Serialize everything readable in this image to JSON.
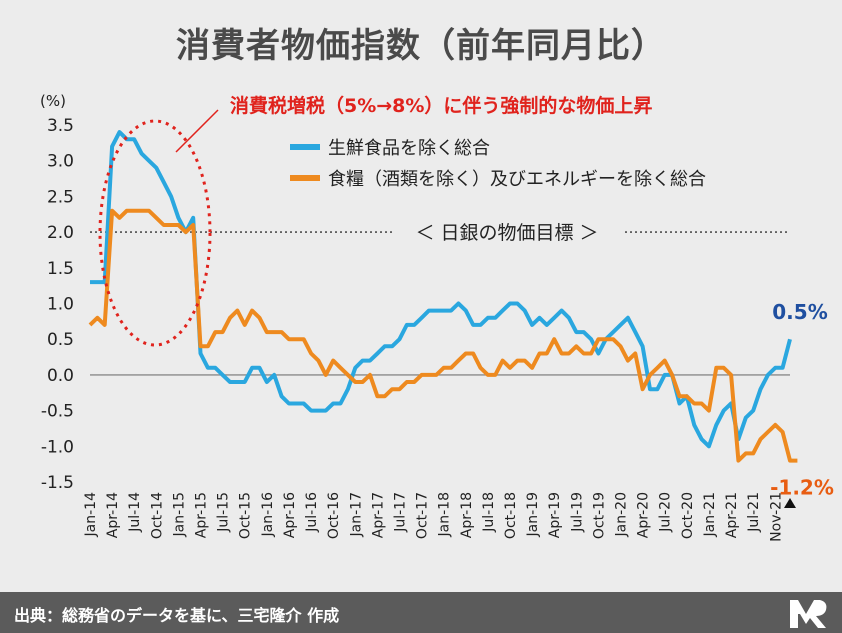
{
  "title": "消費者物価指数（前年同月比）",
  "footer": "出典：総務省のデータを基に、三宅隆介 作成",
  "logo_icon": "mr-logo-icon",
  "chart_data": {
    "type": "line",
    "title": "消費者物価指数（前年同月比）",
    "ylabel": "(%)",
    "ylim": [
      -1.5,
      3.5
    ],
    "yticks": [
      "3.5",
      "3.0",
      "2.5",
      "2.0",
      "1.5",
      "1.0",
      "0.5",
      "0.0",
      "-0.5",
      "-1.0",
      "-1.5"
    ],
    "xtick_labels": [
      "Jan-14",
      "Apr-14",
      "Jul-14",
      "Oct-14",
      "Jan-15",
      "Apr-15",
      "Jul-15",
      "Oct-15",
      "Jan-16",
      "Apr-16",
      "Jul-16",
      "Oct-16",
      "Jan-17",
      "Apr-17",
      "Jul-17",
      "Oct-17",
      "Jan-18",
      "Apr-18",
      "Jul-18",
      "Oct-18",
      "Jan-19",
      "Apr-19",
      "Jul-19",
      "Oct-19",
      "Jan-20",
      "Apr-20",
      "Jul-20",
      "Oct-20",
      "Jan-21",
      "Apr-21",
      "Jul-21",
      "Nov-21"
    ],
    "x_start": "Jan-14",
    "x_end": "Nov-21",
    "series": [
      {
        "name": "生鮮食品を除く総合",
        "color": "#2aa7df",
        "values": [
          1.3,
          1.3,
          1.3,
          3.2,
          3.4,
          3.3,
          3.3,
          3.1,
          3.0,
          2.9,
          2.7,
          2.5,
          2.2,
          2.0,
          2.2,
          0.3,
          0.1,
          0.1,
          0.0,
          -0.1,
          -0.1,
          -0.1,
          0.1,
          0.1,
          -0.1,
          0.0,
          -0.3,
          -0.4,
          -0.4,
          -0.4,
          -0.5,
          -0.5,
          -0.5,
          -0.4,
          -0.4,
          -0.2,
          0.1,
          0.2,
          0.2,
          0.3,
          0.4,
          0.4,
          0.5,
          0.7,
          0.7,
          0.8,
          0.9,
          0.9,
          0.9,
          0.9,
          1.0,
          0.9,
          0.7,
          0.7,
          0.8,
          0.8,
          0.9,
          1.0,
          1.0,
          0.9,
          0.7,
          0.8,
          0.7,
          0.8,
          0.9,
          0.8,
          0.6,
          0.6,
          0.5,
          0.3,
          0.5,
          0.6,
          0.7,
          0.8,
          0.6,
          0.4,
          -0.2,
          -0.2,
          0.0,
          0.0,
          -0.4,
          -0.3,
          -0.7,
          -0.9,
          -1.0,
          -0.7,
          -0.5,
          -0.4,
          -0.9,
          -0.6,
          -0.5,
          -0.2,
          0.0,
          0.1,
          0.1,
          0.5
        ]
      },
      {
        "name": "食糧（酒類を除く）及びエネルギーを除く総合",
        "color": "#ee8a1f",
        "values": [
          0.7,
          0.8,
          0.7,
          2.3,
          2.2,
          2.3,
          2.3,
          2.3,
          2.3,
          2.2,
          2.1,
          2.1,
          2.1,
          2.0,
          2.1,
          0.4,
          0.4,
          0.6,
          0.6,
          0.8,
          0.9,
          0.7,
          0.9,
          0.8,
          0.6,
          0.6,
          0.6,
          0.5,
          0.5,
          0.5,
          0.3,
          0.2,
          0.0,
          0.2,
          0.1,
          0.0,
          -0.1,
          -0.1,
          0.0,
          -0.3,
          -0.3,
          -0.2,
          -0.2,
          -0.1,
          -0.1,
          0.0,
          0.0,
          0.0,
          0.1,
          0.1,
          0.2,
          0.3,
          0.3,
          0.1,
          0.0,
          0.0,
          0.2,
          0.1,
          0.2,
          0.2,
          0.1,
          0.3,
          0.3,
          0.5,
          0.3,
          0.3,
          0.4,
          0.3,
          0.3,
          0.5,
          0.5,
          0.5,
          0.4,
          0.2,
          0.3,
          -0.2,
          0.0,
          0.1,
          0.2,
          0.0,
          -0.3,
          -0.3,
          -0.4,
          -0.4,
          -0.5,
          0.1,
          0.1,
          0.0,
          -1.2,
          -1.1,
          -1.1,
          -0.9,
          -0.8,
          -0.7,
          -0.8,
          -1.2,
          -1.2
        ]
      }
    ],
    "reference_line": {
      "y": 2.0,
      "label": "＜ 日銀の物価目標 ＞"
    },
    "annotation": {
      "text": "消費税増税（5%→8%）に伴う強制的な物価上昇",
      "color": "#e0231d"
    },
    "end_labels": [
      {
        "text": "0.5%",
        "color": "#1f4fa0"
      },
      {
        "text": "-1.2%",
        "color": "#e85d12"
      }
    ],
    "grid": false,
    "legend_position": "top-center"
  }
}
